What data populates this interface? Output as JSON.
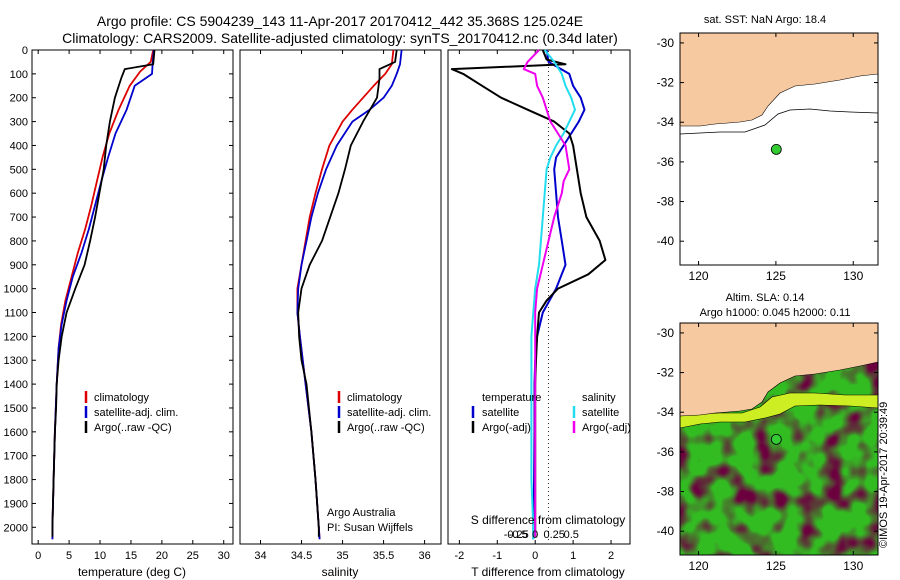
{
  "header": {
    "line1": "Argo profile: CS 5904239_143 11-Apr-2017 20170412_442 35.368S 125.024E",
    "line2": "Climatology: CARS2009. Satellite-adjusted climatology: synTS_20170412.nc (0.34d later)"
  },
  "stamp": "©IMOS 19-Apr-2017 20:39:49",
  "colors": {
    "climatology": "#dd0000",
    "satellite": "#0000cc",
    "argo": "#000000",
    "sat_diff": "#22ddee",
    "argo_diff": "#ee00ee",
    "land": "#f7c9a0",
    "ocean": "#33bb22",
    "marker": "#33cc33"
  },
  "chart_data": [
    {
      "type": "line",
      "name": "temperature_profile",
      "xlabel": "temperature (deg C)",
      "ylabel": "",
      "xlim": [
        -1,
        31.5
      ],
      "ylim": [
        2070,
        0
      ],
      "xticks": [
        0,
        5,
        10,
        15,
        20,
        25,
        30
      ],
      "yticks": [
        0,
        100,
        200,
        300,
        400,
        500,
        600,
        700,
        800,
        900,
        1000,
        1100,
        1200,
        1300,
        1400,
        1500,
        1600,
        1700,
        1800,
        1900,
        2000
      ],
      "legend": [
        "climatology",
        "satellite-adj. clim.",
        "Argo(..raw -QC)"
      ],
      "series": [
        {
          "name": "climatology",
          "depth": [
            0,
            50,
            90,
            150,
            250,
            350,
            450,
            550,
            650,
            750,
            850,
            950,
            1050,
            1150,
            1250,
            1400,
            1600,
            1800,
            2000,
            2050
          ],
          "values": [
            18.6,
            18.2,
            16.5,
            14.8,
            13.0,
            11.5,
            10.4,
            9.5,
            8.6,
            7.6,
            6.4,
            5.4,
            4.4,
            3.7,
            3.3,
            3.0,
            2.7,
            2.5,
            2.3,
            2.3
          ]
        },
        {
          "name": "satellite-adj. clim.",
          "depth": [
            0,
            60,
            100,
            150,
            250,
            350,
            450,
            550,
            650,
            750,
            850,
            950,
            1050,
            1150,
            1250,
            1400,
            1600,
            1800,
            2000,
            2050
          ],
          "values": [
            18.7,
            18.5,
            18.4,
            15.6,
            14.3,
            12.5,
            11.3,
            10.2,
            9.2,
            8.2,
            7.0,
            5.6,
            4.6,
            3.8,
            3.3,
            3.0,
            2.7,
            2.5,
            2.3,
            2.3
          ]
        },
        {
          "name": "Argo(..raw -QC)",
          "depth": [
            0,
            60,
            80,
            120,
            200,
            300,
            400,
            500,
            600,
            700,
            800,
            900,
            1000,
            1100,
            1200,
            1300,
            1400,
            1500,
            1600,
            1800,
            2000,
            2040
          ],
          "values": [
            18.8,
            18.6,
            14.0,
            13.4,
            12.4,
            11.6,
            11.0,
            10.6,
            9.9,
            9.2,
            8.4,
            7.5,
            6.0,
            4.6,
            3.8,
            3.3,
            3.0,
            2.9,
            2.7,
            2.5,
            2.3,
            2.3
          ]
        }
      ]
    },
    {
      "type": "line",
      "name": "salinity_profile",
      "xlabel": "salinity",
      "xlim": [
        33.75,
        36.2
      ],
      "ylim": [
        2070,
        0
      ],
      "xticks": [
        34,
        34.5,
        35,
        35.5,
        36
      ],
      "legend": [
        "climatology",
        "satellite-adj. clim.",
        "Argo(..raw -QC)"
      ],
      "annotation": [
        "Argo Australia",
        "PI: Susan Wijffels"
      ],
      "series": [
        {
          "name": "climatology",
          "depth": [
            0,
            60,
            100,
            150,
            200,
            250,
            300,
            400,
            500,
            600,
            700,
            800,
            900,
            1000,
            1100,
            1200,
            1400,
            1600,
            1800,
            2000,
            2050
          ],
          "values": [
            35.62,
            35.6,
            35.52,
            35.38,
            35.25,
            35.12,
            35.0,
            34.84,
            34.75,
            34.67,
            34.6,
            34.55,
            34.5,
            34.45,
            34.45,
            34.48,
            34.55,
            34.62,
            34.67,
            34.71,
            34.72
          ]
        },
        {
          "name": "satellite-adj. clim.",
          "depth": [
            0,
            60,
            100,
            150,
            200,
            250,
            300,
            400,
            500,
            600,
            700,
            800,
            900,
            1000,
            1100,
            1200,
            1400,
            1600,
            1800,
            2000,
            2050
          ],
          "values": [
            35.72,
            35.7,
            35.66,
            35.6,
            35.5,
            35.33,
            35.12,
            34.93,
            34.8,
            34.7,
            34.62,
            34.56,
            34.5,
            34.46,
            34.45,
            34.48,
            34.55,
            34.62,
            34.67,
            34.71,
            34.72
          ]
        },
        {
          "name": "Argo(..raw -QC)",
          "depth": [
            0,
            50,
            80,
            120,
            200,
            300,
            400,
            500,
            600,
            700,
            800,
            900,
            1000,
            1100,
            1200,
            1300,
            1400,
            1600,
            1800,
            2000,
            2040
          ],
          "values": [
            35.66,
            35.64,
            35.45,
            35.45,
            35.42,
            35.25,
            35.1,
            35.03,
            34.95,
            34.85,
            34.75,
            34.6,
            34.5,
            34.46,
            34.47,
            34.5,
            34.56,
            34.62,
            34.67,
            34.71,
            34.71
          ]
        }
      ]
    },
    {
      "type": "line",
      "name": "difference_profile",
      "xlabel": "T difference from climatology",
      "xlabel_top": "S difference from climatology",
      "xlim": [
        -2.3,
        2.5
      ],
      "ylim": [
        2070,
        0
      ],
      "xticks": [
        -2,
        -1,
        0,
        1,
        2
      ],
      "xticks_s": [
        "-0.5",
        "-0.25",
        "0",
        "0.25",
        "0.5"
      ],
      "legend_t": {
        "title": "temperature",
        "entries": [
          "satellite",
          "Argo(-adj)"
        ]
      },
      "legend_s": {
        "title": "salinity",
        "entries": [
          "satellite",
          "Argo(-adj)"
        ]
      },
      "series": [
        {
          "name": "T satellite",
          "depth": [
            0,
            50,
            100,
            150,
            200,
            250,
            300,
            350,
            400,
            450,
            500,
            600,
            700,
            800,
            900,
            1000,
            1100,
            1200,
            1300,
            1400,
            1600,
            1800,
            2000,
            2050
          ],
          "values": [
            0.3,
            0.35,
            0.9,
            1.0,
            1.2,
            1.3,
            1.15,
            0.95,
            0.75,
            0.55,
            0.5,
            0.55,
            0.6,
            0.7,
            0.8,
            0.55,
            0.2,
            0.05,
            0.0,
            -0.02,
            -0.02,
            -0.03,
            -0.05,
            -0.05
          ]
        },
        {
          "name": "T Argo(-adj)",
          "depth": [
            0,
            40,
            60,
            80,
            100,
            150,
            200,
            250,
            300,
            350,
            400,
            500,
            600,
            700,
            800,
            880,
            940,
            1000,
            1050,
            1100,
            1200,
            1300,
            1400,
            1600,
            1800,
            2000,
            2040
          ],
          "values": [
            0.2,
            0.3,
            0.8,
            -2.2,
            -1.9,
            -1.4,
            -0.9,
            -0.2,
            0.5,
            0.9,
            1.0,
            1.1,
            1.2,
            1.35,
            1.7,
            1.85,
            1.4,
            0.6,
            0.3,
            0.1,
            0.05,
            0.02,
            0.0,
            0.0,
            0.0,
            0.0,
            0.0
          ]
        },
        {
          "name": "S satellite",
          "depth": [
            0,
            50,
            100,
            150,
            200,
            250,
            300,
            350,
            400,
            450,
            500,
            600,
            700,
            800,
            900,
            1000,
            1100,
            1200,
            1400,
            1600,
            1800,
            2000,
            2050
          ],
          "values": [
            0.25,
            0.5,
            0.7,
            0.8,
            0.95,
            1.05,
            0.9,
            0.75,
            0.55,
            0.4,
            0.3,
            0.25,
            0.2,
            0.15,
            0.1,
            0.0,
            -0.05,
            -0.1,
            -0.1,
            -0.1,
            -0.1,
            -0.05,
            -0.05
          ]
        },
        {
          "name": "S Argo(-adj)",
          "depth": [
            0,
            50,
            80,
            100,
            150,
            200,
            250,
            300,
            350,
            400,
            450,
            500,
            550,
            600,
            700,
            800,
            900,
            1000,
            1100,
            1200,
            1400,
            1600,
            1800,
            2000,
            2040
          ],
          "values": [
            0.1,
            -0.2,
            -0.3,
            0.0,
            0.05,
            0.2,
            0.3,
            0.4,
            0.6,
            0.8,
            0.85,
            0.9,
            0.75,
            0.7,
            0.5,
            0.35,
            0.2,
            0.05,
            0.0,
            0.0,
            0.0,
            0.0,
            0.0,
            0.0,
            0.0
          ]
        }
      ]
    },
    {
      "type": "scatter",
      "name": "sst_map",
      "title": "sat. SST: NaN Argo: 18.4",
      "xlim": [
        118.8,
        131.6
      ],
      "ylim": [
        -41.2,
        -29.5
      ],
      "xticks": [
        120,
        125,
        130
      ],
      "yticks": [
        -30,
        -32,
        -34,
        -36,
        -38,
        -40
      ],
      "points": [
        {
          "lon": 125.024,
          "lat": -35.368
        }
      ]
    },
    {
      "type": "heatmap",
      "name": "sla_map",
      "title_lines": [
        "Altim. SLA: 0.14",
        "Argo h1000: 0.045 h2000: 0.11"
      ],
      "xlim": [
        118.8,
        131.6
      ],
      "ylim": [
        -41.2,
        -29.5
      ],
      "xticks": [
        120,
        125,
        130
      ],
      "yticks": [
        -30,
        -32,
        -34,
        -36,
        -38,
        -40
      ],
      "points": [
        {
          "lon": 125.024,
          "lat": -35.368
        }
      ]
    }
  ]
}
